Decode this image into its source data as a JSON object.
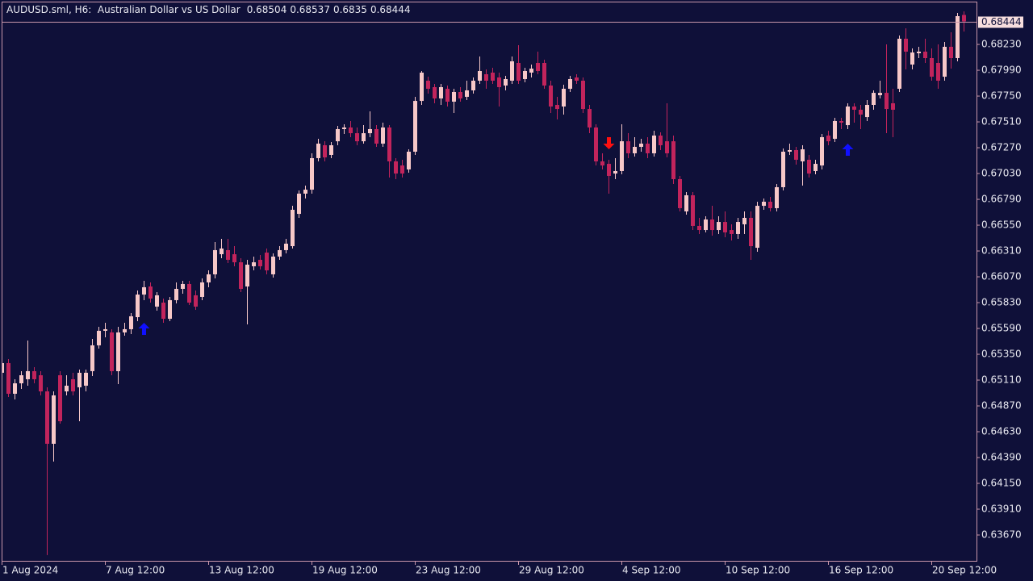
{
  "chart_data": {
    "type": "candlestick",
    "title": "AUDUSD.sml, H6:  Australian Dollar vs US Dollar",
    "candles": [
      [
        0.65178,
        0.65283,
        0.65118,
        0.65268
      ],
      [
        0.65268,
        0.65305,
        0.64953,
        0.64983
      ],
      [
        0.64983,
        0.65118,
        0.6493,
        0.6508
      ],
      [
        0.6508,
        0.65193,
        0.65028,
        0.65155
      ],
      [
        0.65118,
        0.65478,
        0.65058,
        0.65193
      ],
      [
        0.65193,
        0.6523,
        0.6508,
        0.65118
      ],
      [
        0.65155,
        0.65193,
        0.64968,
        0.65005
      ],
      [
        0.65005,
        0.65043,
        0.63483,
        0.64518
      ],
      [
        0.64518,
        0.65005,
        0.64353,
        0.64968
      ],
      [
        0.65155,
        0.65193,
        0.64705,
        0.64728
      ],
      [
        0.65005,
        0.65155,
        0.64968,
        0.65058
      ],
      [
        0.65118,
        0.65178,
        0.64968,
        0.65005
      ],
      [
        0.65043,
        0.65208,
        0.64728,
        0.65178
      ],
      [
        0.65058,
        0.65208,
        0.65005,
        0.65178
      ],
      [
        0.65193,
        0.65493,
        0.65148,
        0.65433
      ],
      [
        0.65433,
        0.65605,
        0.65403,
        0.65568
      ],
      [
        0.65568,
        0.65643,
        0.65508,
        0.65583
      ],
      [
        0.65553,
        0.65583,
        0.65155,
        0.65193
      ],
      [
        0.65193,
        0.65605,
        0.65073,
        0.65553
      ],
      [
        0.65553,
        0.65643,
        0.65523,
        0.65583
      ],
      [
        0.65583,
        0.65733,
        0.65538,
        0.65703
      ],
      [
        0.65695,
        0.65943,
        0.65658,
        0.65905
      ],
      [
        0.65905,
        0.66033,
        0.65853,
        0.65973
      ],
      [
        0.6598,
        0.66018,
        0.6583,
        0.65868
      ],
      [
        0.65793,
        0.65928,
        0.65755,
        0.65898
      ],
      [
        0.6583,
        0.65868,
        0.65643,
        0.6568
      ],
      [
        0.6568,
        0.65883,
        0.65658,
        0.65853
      ],
      [
        0.65853,
        0.66018,
        0.65823,
        0.65958
      ],
      [
        0.65958,
        0.66033,
        0.65913,
        0.66003
      ],
      [
        0.66003,
        0.66033,
        0.65808,
        0.6583
      ],
      [
        0.65898,
        0.65943,
        0.65763,
        0.65793
      ],
      [
        0.65883,
        0.66055,
        0.65853,
        0.66018
      ],
      [
        0.66018,
        0.6613,
        0.65973,
        0.66093
      ],
      [
        0.66093,
        0.66393,
        0.66055,
        0.66318
      ],
      [
        0.6628,
        0.66423,
        0.66243,
        0.66333
      ],
      [
        0.66318,
        0.66423,
        0.66198,
        0.66228
      ],
      [
        0.6628,
        0.66355,
        0.66168,
        0.66205
      ],
      [
        0.66205,
        0.66243,
        0.65928,
        0.65958
      ],
      [
        0.6598,
        0.66228,
        0.65628,
        0.66183
      ],
      [
        0.66168,
        0.66258,
        0.6613,
        0.66205
      ],
      [
        0.66228,
        0.66273,
        0.66138,
        0.66168
      ],
      [
        0.66295,
        0.66333,
        0.66093,
        0.6613
      ],
      [
        0.66093,
        0.66288,
        0.66063,
        0.66258
      ],
      [
        0.66258,
        0.66355,
        0.66228,
        0.66318
      ],
      [
        0.66318,
        0.66423,
        0.66288,
        0.66378
      ],
      [
        0.66355,
        0.6673,
        0.66333,
        0.66693
      ],
      [
        0.66655,
        0.66873,
        0.66618,
        0.66843
      ],
      [
        0.66843,
        0.66918,
        0.66798,
        0.6688
      ],
      [
        0.6688,
        0.67218,
        0.66843,
        0.67173
      ],
      [
        0.67173,
        0.67353,
        0.67143,
        0.67308
      ],
      [
        0.67293,
        0.6733,
        0.67143,
        0.6718
      ],
      [
        0.67203,
        0.67323,
        0.67173,
        0.67293
      ],
      [
        0.6733,
        0.67473,
        0.67293,
        0.67443
      ],
      [
        0.67443,
        0.67488,
        0.67398,
        0.67458
      ],
      [
        0.67458,
        0.67518,
        0.67368,
        0.67405
      ],
      [
        0.67405,
        0.67458,
        0.67293,
        0.6733
      ],
      [
        0.6733,
        0.6748,
        0.67308,
        0.67405
      ],
      [
        0.67405,
        0.67608,
        0.67368,
        0.67443
      ],
      [
        0.67443,
        0.6748,
        0.67278,
        0.67308
      ],
      [
        0.67308,
        0.67503,
        0.67278,
        0.67458
      ],
      [
        0.67458,
        0.6748,
        0.66993,
        0.67143
      ],
      [
        0.67143,
        0.67173,
        0.66978,
        0.6703
      ],
      [
        0.67105,
        0.67158,
        0.66993,
        0.6703
      ],
      [
        0.67068,
        0.67255,
        0.67038,
        0.67233
      ],
      [
        0.67233,
        0.67743,
        0.67203,
        0.67705
      ],
      [
        0.67705,
        0.67983,
        0.67668,
        0.67968
      ],
      [
        0.67893,
        0.6793,
        0.67773,
        0.67818
      ],
      [
        0.67833,
        0.67863,
        0.67683,
        0.67728
      ],
      [
        0.67728,
        0.67863,
        0.67668,
        0.67833
      ],
      [
        0.67818,
        0.67848,
        0.67653,
        0.67698
      ],
      [
        0.67698,
        0.67818,
        0.67593,
        0.67788
      ],
      [
        0.67788,
        0.67833,
        0.67698,
        0.67728
      ],
      [
        0.67743,
        0.67893,
        0.67713,
        0.67803
      ],
      [
        0.67803,
        0.67923,
        0.67773,
        0.67893
      ],
      [
        0.67893,
        0.68118,
        0.67863,
        0.67983
      ],
      [
        0.67953,
        0.67998,
        0.67818,
        0.67893
      ],
      [
        0.67968,
        0.68013,
        0.67863,
        0.67893
      ],
      [
        0.67923,
        0.67968,
        0.67653,
        0.67833
      ],
      [
        0.67848,
        0.67938,
        0.67803,
        0.67908
      ],
      [
        0.67893,
        0.68118,
        0.67863,
        0.68073
      ],
      [
        0.68058,
        0.68223,
        0.67863,
        0.67893
      ],
      [
        0.67908,
        0.68013,
        0.67878,
        0.67983
      ],
      [
        0.67968,
        0.68043,
        0.67923,
        0.68005
      ],
      [
        0.68058,
        0.68163,
        0.67953,
        0.67983
      ],
      [
        0.68058,
        0.68088,
        0.67818,
        0.67848
      ],
      [
        0.67848,
        0.67893,
        0.67593,
        0.67653
      ],
      [
        0.67668,
        0.67743,
        0.67533,
        0.6763
      ],
      [
        0.67653,
        0.67855,
        0.67578,
        0.67818
      ],
      [
        0.67818,
        0.67938,
        0.67788,
        0.67908
      ],
      [
        0.67923,
        0.67953,
        0.67863,
        0.67893
      ],
      [
        0.67893,
        0.67923,
        0.67593,
        0.6763
      ],
      [
        0.6763,
        0.67668,
        0.67405,
        0.67458
      ],
      [
        0.67458,
        0.67488,
        0.67105,
        0.67143
      ],
      [
        0.67143,
        0.67218,
        0.67068,
        0.67105
      ],
      [
        0.6712,
        0.67158,
        0.66843,
        0.67008
      ],
      [
        0.6703,
        0.67173,
        0.66978,
        0.67053
      ],
      [
        0.67053,
        0.67488,
        0.67023,
        0.6733
      ],
      [
        0.6733,
        0.67405,
        0.67173,
        0.67218
      ],
      [
        0.67218,
        0.67368,
        0.67188,
        0.67278
      ],
      [
        0.67278,
        0.67353,
        0.67233,
        0.67308
      ],
      [
        0.67308,
        0.67368,
        0.67173,
        0.67218
      ],
      [
        0.67218,
        0.67428,
        0.67188,
        0.67383
      ],
      [
        0.67383,
        0.67413,
        0.67248,
        0.67293
      ],
      [
        0.6733,
        0.67683,
        0.6718,
        0.67218
      ],
      [
        0.6733,
        0.67383,
        0.66933,
        0.66978
      ],
      [
        0.66978,
        0.67008,
        0.66678,
        0.66708
      ],
      [
        0.66678,
        0.66858,
        0.66648,
        0.66828
      ],
      [
        0.66828,
        0.66858,
        0.66505,
        0.66543
      ],
      [
        0.66543,
        0.66618,
        0.66468,
        0.66505
      ],
      [
        0.66505,
        0.66633,
        0.66483,
        0.66603
      ],
      [
        0.66603,
        0.6673,
        0.66453,
        0.66505
      ],
      [
        0.66505,
        0.66633,
        0.66468,
        0.6658
      ],
      [
        0.6658,
        0.66678,
        0.66438,
        0.66483
      ],
      [
        0.66505,
        0.66558,
        0.66408,
        0.66468
      ],
      [
        0.66468,
        0.66618,
        0.66423,
        0.6658
      ],
      [
        0.66558,
        0.66678,
        0.66468,
        0.66618
      ],
      [
        0.66618,
        0.66678,
        0.66228,
        0.66355
      ],
      [
        0.6634,
        0.66768,
        0.66303,
        0.6673
      ],
      [
        0.6673,
        0.66798,
        0.66693,
        0.66768
      ],
      [
        0.66768,
        0.66813,
        0.66678,
        0.66708
      ],
      [
        0.66708,
        0.66933,
        0.66678,
        0.66903
      ],
      [
        0.66903,
        0.67263,
        0.66873,
        0.67233
      ],
      [
        0.67233,
        0.67308,
        0.67203,
        0.67248
      ],
      [
        0.67248,
        0.67278,
        0.67113,
        0.67158
      ],
      [
        0.67143,
        0.67293,
        0.66918,
        0.67255
      ],
      [
        0.67158,
        0.67203,
        0.66993,
        0.6703
      ],
      [
        0.67053,
        0.67158,
        0.67023,
        0.6712
      ],
      [
        0.67105,
        0.67398,
        0.67068,
        0.67368
      ],
      [
        0.67383,
        0.67428,
        0.67293,
        0.6733
      ],
      [
        0.67353,
        0.67548,
        0.67323,
        0.67518
      ],
      [
        0.67518,
        0.67548,
        0.67443,
        0.67503
      ],
      [
        0.6748,
        0.67683,
        0.67443,
        0.67653
      ],
      [
        0.67653,
        0.67683,
        0.67503,
        0.67623
      ],
      [
        0.67623,
        0.67668,
        0.67443,
        0.67578
      ],
      [
        0.67555,
        0.67713,
        0.67518,
        0.67668
      ],
      [
        0.67668,
        0.67803,
        0.67623,
        0.6778
      ],
      [
        0.67758,
        0.67893,
        0.67728,
        0.6778
      ],
      [
        0.6778,
        0.6823,
        0.67405,
        0.6763
      ],
      [
        0.67683,
        0.67818,
        0.67368,
        0.67623
      ],
      [
        0.67818,
        0.68313,
        0.67788,
        0.68283
      ],
      [
        0.68283,
        0.6838,
        0.67998,
        0.68163
      ],
      [
        0.68043,
        0.68193,
        0.67998,
        0.68155
      ],
      [
        0.68148,
        0.68208,
        0.68103,
        0.68163
      ],
      [
        0.68163,
        0.68283,
        0.68058,
        0.68103
      ],
      [
        0.68103,
        0.68193,
        0.67893,
        0.6793
      ],
      [
        0.68058,
        0.6823,
        0.67818,
        0.67893
      ],
      [
        0.6793,
        0.68253,
        0.67893,
        0.68208
      ],
      [
        0.68208,
        0.68343,
        0.68005,
        0.68103
      ],
      [
        0.68103,
        0.68523,
        0.68073,
        0.68493
      ],
      [
        0.68504,
        0.68537,
        0.6835,
        0.68444
      ]
    ],
    "up_color": "#f7c8c8",
    "down_color": "#c2245c",
    "ylim": [
      0.6343,
      0.68628
    ],
    "yticks": [
      {
        "value": 0.6823,
        "label": "0.68230"
      },
      {
        "value": 0.6799,
        "label": "0.67990"
      },
      {
        "value": 0.6775,
        "label": "0.67750"
      },
      {
        "value": 0.6751,
        "label": "0.67510"
      },
      {
        "value": 0.6727,
        "label": "0.67270"
      },
      {
        "value": 0.6703,
        "label": "0.67030"
      },
      {
        "value": 0.6679,
        "label": "0.66790"
      },
      {
        "value": 0.6655,
        "label": "0.66550"
      },
      {
        "value": 0.6631,
        "label": "0.66310"
      },
      {
        "value": 0.6607,
        "label": "0.66070"
      },
      {
        "value": 0.6583,
        "label": "0.65830"
      },
      {
        "value": 0.6559,
        "label": "0.65590"
      },
      {
        "value": 0.6535,
        "label": "0.65350"
      },
      {
        "value": 0.6511,
        "label": "0.65110"
      },
      {
        "value": 0.6487,
        "label": "0.64870"
      },
      {
        "value": 0.6463,
        "label": "0.64630"
      },
      {
        "value": 0.6439,
        "label": "0.64390"
      },
      {
        "value": 0.6415,
        "label": "0.64150"
      },
      {
        "value": 0.6391,
        "label": "0.63910"
      },
      {
        "value": 0.6367,
        "label": "0.63670"
      }
    ],
    "xticks": [
      {
        "value": 0,
        "label": "1 Aug 2024"
      },
      {
        "value": 16,
        "label": "7 Aug 12:00"
      },
      {
        "value": 32,
        "label": "13 Aug 12:00"
      },
      {
        "value": 48,
        "label": "19 Aug 12:00"
      },
      {
        "value": 64,
        "label": "23 Aug 12:00"
      },
      {
        "value": 80,
        "label": "29 Aug 12:00"
      },
      {
        "value": 96,
        "label": "4 Sep 12:00"
      },
      {
        "value": 112,
        "label": "10 Sep 12:00"
      },
      {
        "value": 128,
        "label": "16 Sep 12:00"
      },
      {
        "value": 144,
        "label": "20 Sep 12:00"
      }
    ],
    "signals": [
      {
        "index": 22,
        "direction": "up",
        "value": 0.65643
      },
      {
        "index": 94,
        "direction": "down",
        "value": 0.67255
      },
      {
        "index": 131,
        "direction": "up",
        "value": 0.67308
      }
    ],
    "up_signal_color": "#1010ff",
    "down_signal_color": "#ff1010"
  }
}
